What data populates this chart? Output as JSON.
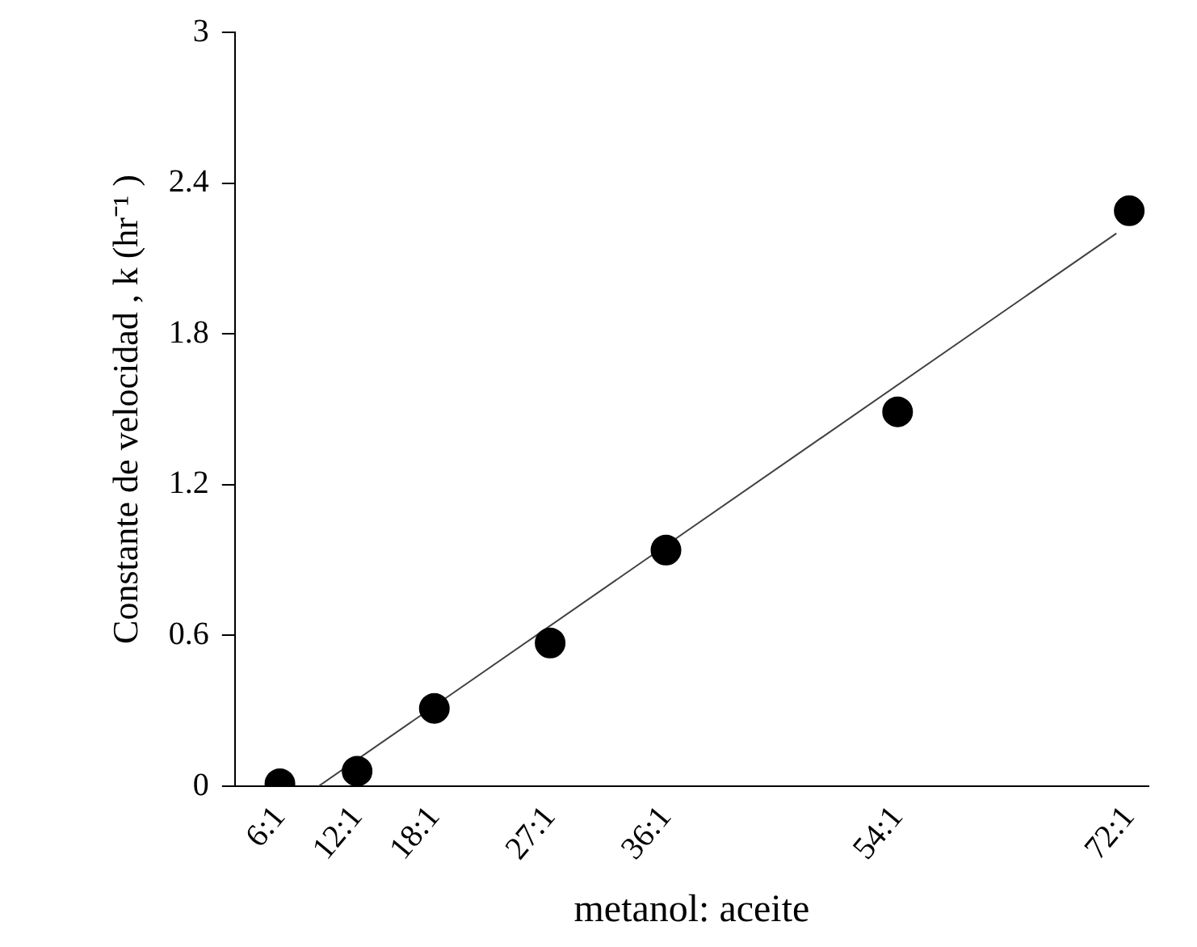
{
  "chart_data": {
    "type": "scatter",
    "xlabel": "metanol: aceite",
    "ylabel": "Constante de velocidad , k (hr⁻¹ )",
    "categories": [
      null,
      null,
      null,
      "6:1",
      null,
      null,
      null,
      null,
      null,
      "12:1",
      null,
      null,
      null,
      null,
      null,
      "18:1",
      null,
      null,
      null,
      null,
      null,
      null,
      null,
      null,
      "27:1",
      null,
      null,
      null,
      null,
      null,
      null,
      null,
      null,
      "36:1",
      null,
      null,
      null,
      null,
      null,
      null,
      null,
      null,
      null,
      null,
      null,
      null,
      null,
      null,
      null,
      null,
      null,
      "54:1",
      null,
      null,
      null,
      null,
      null,
      null,
      null,
      null,
      null,
      null,
      null,
      null,
      null,
      null,
      null,
      null,
      null,
      "72:1",
      null
    ],
    "series": [
      {
        "type": "scatter",
        "color": "#000000",
        "marker": "circle",
        "values": [
          null,
          null,
          null,
          0.01,
          null,
          null,
          null,
          null,
          null,
          0.06,
          null,
          null,
          null,
          null,
          null,
          0.31,
          null,
          null,
          null,
          null,
          null,
          null,
          null,
          null,
          0.57,
          null,
          null,
          null,
          null,
          null,
          null,
          null,
          null,
          0.94,
          null,
          null,
          null,
          null,
          null,
          null,
          null,
          null,
          null,
          null,
          null,
          null,
          null,
          null,
          null,
          null,
          null,
          1.49,
          null,
          null,
          null,
          null,
          null,
          null,
          null,
          null,
          null,
          null,
          null,
          null,
          null,
          null,
          null,
          null,
          null,
          2.29,
          null
        ]
      },
      {
        "type": "line",
        "color": "#404040",
        "marker": "none",
        "line_style": "solid",
        "values": [
          null,
          null,
          null,
          null,
          null,
          null,
          0,
          null,
          null,
          null,
          null,
          null,
          null,
          null,
          null,
          null,
          null,
          null,
          null,
          null,
          null,
          null,
          null,
          null,
          null,
          null,
          null,
          null,
          null,
          null,
          null,
          null,
          null,
          null,
          null,
          null,
          null,
          null,
          null,
          null,
          null,
          null,
          null,
          null,
          null,
          null,
          null,
          null,
          null,
          null,
          null,
          null,
          null,
          null,
          null,
          null,
          null,
          null,
          null,
          null,
          null,
          null,
          null,
          null,
          null,
          null,
          null,
          null,
          2.2,
          null,
          null
        ]
      }
    ],
    "ylim": [
      0,
      3
    ],
    "yticks": [
      0,
      0.6,
      1.2,
      1.8,
      2.4,
      3
    ],
    "grid": false,
    "legend": false
  }
}
